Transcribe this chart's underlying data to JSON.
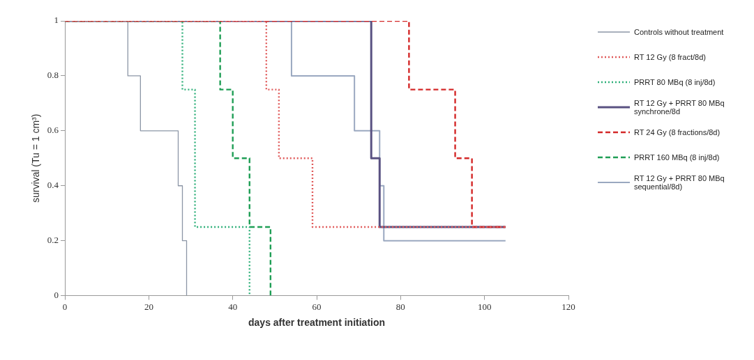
{
  "chart_data": {
    "type": "step",
    "xlabel": "days after treatment initiation",
    "ylabel": "survival (Tu = 1 cm³)",
    "xlim": [
      0,
      120
    ],
    "xticks": [
      0,
      20,
      40,
      60,
      80,
      100,
      120
    ],
    "ylim": [
      0,
      1
    ],
    "yticks": [
      0,
      0.2,
      0.4,
      0.6,
      0.8,
      1
    ],
    "grid": false,
    "legend": "right",
    "marker": "none",
    "series": [
      {
        "name": "Controls without treatment",
        "color": "#8c96a6",
        "line_style": "solid",
        "x": [
          0,
          15,
          18,
          27,
          28,
          29
        ],
        "values": [
          1,
          0.8,
          0.6,
          0.4,
          0.2,
          0
        ]
      },
      {
        "name": "RT 12 Gy (8 fract/8d)",
        "color": "#e05a5a",
        "line_style": "dotted",
        "x": [
          0,
          48,
          51,
          59,
          105
        ],
        "values": [
          1,
          0.75,
          0.5,
          0.25,
          0.25
        ]
      },
      {
        "name": "PRRT 80 MBq (8 inj/8d)",
        "color": "#2fb07a",
        "line_style": "dotted",
        "x": [
          0,
          28,
          31,
          44
        ],
        "values": [
          1,
          0.75,
          0.25,
          0
        ]
      },
      {
        "name": "RT 12 Gy + PRRT 80 MBq synchrone/8d",
        "color": "#5a5282",
        "line_style": "solid",
        "x": [
          0,
          73,
          75,
          105
        ],
        "values": [
          1,
          0.5,
          0.25,
          0.25
        ]
      },
      {
        "name": "RT 24 Gy (8 fractions/8d)",
        "color": "#d42828",
        "line_style": "dashed",
        "x": [
          0,
          82,
          93,
          97,
          105
        ],
        "values": [
          1,
          0.75,
          0.5,
          0.25,
          0.25
        ]
      },
      {
        "name": "PRRT 160 MBq (8 inj/8d)",
        "color": "#1f9e55",
        "line_style": "dashed",
        "x": [
          0,
          37,
          40,
          44,
          49
        ],
        "values": [
          1,
          0.75,
          0.5,
          0.25,
          0
        ]
      },
      {
        "name": "RT 12 Gy + PRRT 80 MBq sequential/8d)",
        "color": "#9aa8c0",
        "line_style": "solid",
        "x": [
          0,
          54,
          69,
          75,
          76,
          105
        ],
        "values": [
          1,
          0.8,
          0.6,
          0.4,
          0.2,
          0.2
        ]
      }
    ]
  }
}
